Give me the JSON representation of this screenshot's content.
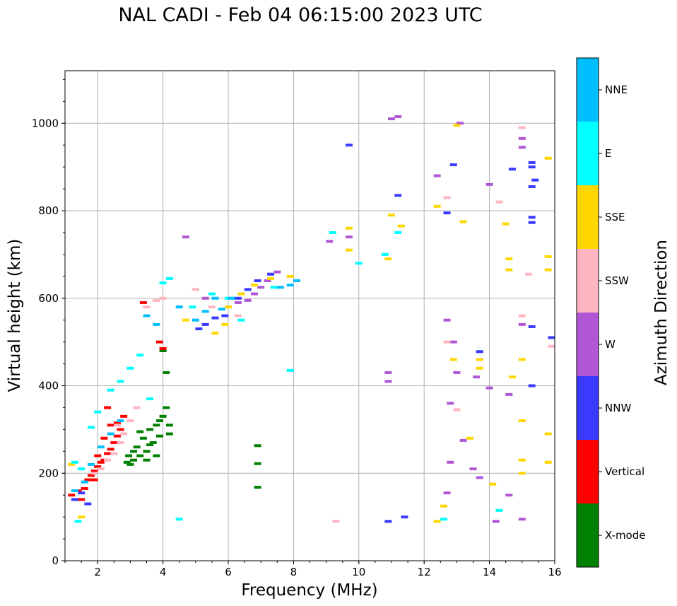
{
  "chart_data": {
    "type": "scatter",
    "title": "NAL CADI - Feb 04 06:15:00 2023 UTC",
    "xlabel": "Frequency (MHz)",
    "ylabel": "Virtual height (km)",
    "xlim": [
      1,
      16
    ],
    "ylim": [
      0,
      1120
    ],
    "xticks": [
      2,
      4,
      6,
      8,
      10,
      12,
      14,
      16
    ],
    "xtick_labels": [
      "2",
      "4",
      "6",
      "8",
      "10",
      "12",
      "14",
      "16"
    ],
    "yticks": [
      0,
      200,
      400,
      600,
      800,
      1000
    ],
    "ytick_labels": [
      "0",
      "200",
      "400",
      "600",
      "800",
      "1000"
    ],
    "grid": true,
    "colorbar": {
      "label": "Azimuth Direction",
      "categories": [
        {
          "name": "X-mode",
          "color": "#008000"
        },
        {
          "name": "Vertical",
          "color": "#ff0000"
        },
        {
          "name": "NNW",
          "color": "#3a3aff"
        },
        {
          "name": "W",
          "color": "#b057d6"
        },
        {
          "name": "SSW",
          "color": "#ffb6c1"
        },
        {
          "name": "SSE",
          "color": "#ffd700"
        },
        {
          "name": "E",
          "color": "#00ffff"
        },
        {
          "name": "NNE",
          "color": "#00bfff"
        }
      ]
    },
    "series": [
      {
        "name": "X-mode",
        "points": [
          [
            2.9,
            225
          ],
          [
            3.1,
            230
          ],
          [
            3.3,
            240
          ],
          [
            3.5,
            250
          ],
          [
            3.7,
            270
          ],
          [
            3.9,
            285
          ],
          [
            3.2,
            260
          ],
          [
            3.4,
            280
          ],
          [
            3.6,
            300
          ],
          [
            3.8,
            310
          ],
          [
            4.0,
            330
          ],
          [
            4.1,
            350
          ],
          [
            3.0,
            220
          ],
          [
            3.5,
            230
          ],
          [
            3.8,
            240
          ],
          [
            4.2,
            290
          ],
          [
            4.0,
            480
          ],
          [
            4.1,
            430
          ],
          [
            6.9,
            263
          ],
          [
            6.9,
            222
          ],
          [
            6.9,
            168
          ],
          [
            3.3,
            295
          ],
          [
            3.6,
            265
          ],
          [
            3.9,
            320
          ],
          [
            4.2,
            310
          ],
          [
            3.1,
            250
          ],
          [
            2.95,
            240
          ]
        ]
      },
      {
        "name": "Vertical",
        "points": [
          [
            1.2,
            150
          ],
          [
            1.4,
            160
          ],
          [
            1.5,
            140
          ],
          [
            1.6,
            165
          ],
          [
            1.7,
            185
          ],
          [
            1.8,
            195
          ],
          [
            1.9,
            205
          ],
          [
            2.0,
            215
          ],
          [
            2.1,
            225
          ],
          [
            2.2,
            230
          ],
          [
            2.3,
            245
          ],
          [
            2.4,
            255
          ],
          [
            2.5,
            270
          ],
          [
            2.6,
            285
          ],
          [
            2.7,
            300
          ],
          [
            2.4,
            310
          ],
          [
            2.2,
            280
          ],
          [
            2.0,
            240
          ],
          [
            1.9,
            185
          ],
          [
            2.6,
            315
          ],
          [
            2.8,
            330
          ],
          [
            3.9,
            500
          ],
          [
            4.0,
            485
          ],
          [
            3.4,
            590
          ],
          [
            2.3,
            350
          ]
        ]
      },
      {
        "name": "NNW",
        "points": [
          [
            1.3,
            140
          ],
          [
            1.5,
            155
          ],
          [
            1.7,
            130
          ],
          [
            5.1,
            530
          ],
          [
            5.3,
            540
          ],
          [
            5.6,
            555
          ],
          [
            5.9,
            560
          ],
          [
            6.3,
            600
          ],
          [
            6.6,
            620
          ],
          [
            6.9,
            640
          ],
          [
            7.3,
            655
          ],
          [
            9.7,
            950
          ],
          [
            10.9,
            90
          ],
          [
            11.4,
            100
          ],
          [
            11.2,
            835
          ],
          [
            12.7,
            795
          ],
          [
            13.7,
            478
          ],
          [
            15.3,
            900
          ],
          [
            15.3,
            910
          ],
          [
            15.4,
            870
          ],
          [
            15.3,
            855
          ],
          [
            15.3,
            785
          ],
          [
            15.3,
            773
          ],
          [
            15.3,
            535
          ],
          [
            15.3,
            400
          ],
          [
            15.9,
            510
          ],
          [
            12.9,
            905
          ],
          [
            14.7,
            895
          ]
        ]
      },
      {
        "name": "W",
        "points": [
          [
            6.8,
            610
          ],
          [
            7.0,
            625
          ],
          [
            7.2,
            640
          ],
          [
            7.5,
            660
          ],
          [
            6.6,
            595
          ],
          [
            6.3,
            590
          ],
          [
            4.7,
            740
          ],
          [
            5.3,
            600
          ],
          [
            9.1,
            730
          ],
          [
            9.7,
            740
          ],
          [
            10.9,
            410
          ],
          [
            10.9,
            430
          ],
          [
            11.0,
            1010
          ],
          [
            11.2,
            1015
          ],
          [
            12.4,
            880
          ],
          [
            12.7,
            550
          ],
          [
            12.9,
            500
          ],
          [
            13.0,
            430
          ],
          [
            13.1,
            1000
          ],
          [
            13.6,
            420
          ],
          [
            14.0,
            860
          ],
          [
            14.0,
            395
          ],
          [
            15.0,
            965
          ],
          [
            15.0,
            945
          ],
          [
            15.0,
            540
          ],
          [
            14.6,
            380
          ],
          [
            14.6,
            150
          ],
          [
            15.0,
            95
          ],
          [
            14.2,
            90
          ],
          [
            12.7,
            155
          ],
          [
            12.8,
            225
          ],
          [
            12.8,
            360
          ],
          [
            13.2,
            275
          ],
          [
            13.5,
            210
          ],
          [
            13.7,
            190
          ]
        ]
      },
      {
        "name": "SSW",
        "points": [
          [
            1.9,
            200
          ],
          [
            2.1,
            210
          ],
          [
            2.3,
            230
          ],
          [
            2.5,
            245
          ],
          [
            2.7,
            270
          ],
          [
            2.8,
            290
          ],
          [
            3.0,
            320
          ],
          [
            3.2,
            350
          ],
          [
            2.6,
            310
          ],
          [
            3.5,
            580
          ],
          [
            3.8,
            595
          ],
          [
            4.0,
            600
          ],
          [
            5.0,
            620
          ],
          [
            5.5,
            580
          ],
          [
            6.3,
            560
          ],
          [
            12.7,
            500
          ],
          [
            13.0,
            345
          ],
          [
            15.0,
            560
          ],
          [
            15.2,
            655
          ],
          [
            15.9,
            490
          ],
          [
            15.0,
            990
          ],
          [
            14.3,
            820
          ],
          [
            9.3,
            90
          ],
          [
            12.7,
            830
          ]
        ]
      },
      {
        "name": "SSE",
        "points": [
          [
            1.2,
            220
          ],
          [
            1.5,
            100
          ],
          [
            4.7,
            550
          ],
          [
            5.6,
            520
          ],
          [
            5.9,
            540
          ],
          [
            6.0,
            580
          ],
          [
            6.4,
            610
          ],
          [
            6.8,
            630
          ],
          [
            7.3,
            645
          ],
          [
            7.9,
            650
          ],
          [
            8.1,
            640
          ],
          [
            9.7,
            710
          ],
          [
            9.7,
            760
          ],
          [
            10.9,
            690
          ],
          [
            11.0,
            790
          ],
          [
            11.3,
            765
          ],
          [
            12.4,
            810
          ],
          [
            12.6,
            125
          ],
          [
            12.9,
            460
          ],
          [
            13.2,
            775
          ],
          [
            13.4,
            280
          ],
          [
            13.7,
            460
          ],
          [
            13.7,
            440
          ],
          [
            14.5,
            770
          ],
          [
            14.6,
            665
          ],
          [
            14.6,
            690
          ],
          [
            14.7,
            420
          ],
          [
            15.0,
            460
          ],
          [
            15.0,
            320
          ],
          [
            15.0,
            230
          ],
          [
            15.0,
            200
          ],
          [
            15.8,
            920
          ],
          [
            15.8,
            695
          ],
          [
            15.8,
            665
          ],
          [
            15.8,
            290
          ],
          [
            15.8,
            225
          ],
          [
            13.0,
            995
          ],
          [
            14.1,
            175
          ],
          [
            12.4,
            90
          ]
        ]
      },
      {
        "name": "E",
        "points": [
          [
            1.3,
            225
          ],
          [
            1.5,
            210
          ],
          [
            1.4,
            90
          ],
          [
            1.8,
            305
          ],
          [
            2.0,
            340
          ],
          [
            2.4,
            390
          ],
          [
            2.7,
            410
          ],
          [
            3.0,
            440
          ],
          [
            3.3,
            470
          ],
          [
            3.6,
            370
          ],
          [
            4.0,
            635
          ],
          [
            4.2,
            645
          ],
          [
            4.9,
            580
          ],
          [
            5.5,
            610
          ],
          [
            6.0,
            600
          ],
          [
            6.4,
            550
          ],
          [
            7.4,
            625
          ],
          [
            7.9,
            435
          ],
          [
            9.2,
            750
          ],
          [
            10.0,
            680
          ],
          [
            10.8,
            700
          ],
          [
            11.2,
            750
          ],
          [
            12.6,
            95
          ],
          [
            14.3,
            115
          ],
          [
            4.5,
            95
          ]
        ]
      },
      {
        "name": "NNE",
        "points": [
          [
            1.3,
            160
          ],
          [
            1.6,
            180
          ],
          [
            1.8,
            220
          ],
          [
            2.1,
            260
          ],
          [
            2.4,
            290
          ],
          [
            2.7,
            320
          ],
          [
            3.5,
            560
          ],
          [
            3.8,
            540
          ],
          [
            4.5,
            580
          ],
          [
            5.0,
            550
          ],
          [
            5.3,
            570
          ],
          [
            5.6,
            600
          ],
          [
            5.8,
            575
          ],
          [
            6.1,
            600
          ],
          [
            7.6,
            625
          ],
          [
            7.9,
            630
          ],
          [
            8.1,
            640
          ]
        ]
      }
    ]
  }
}
